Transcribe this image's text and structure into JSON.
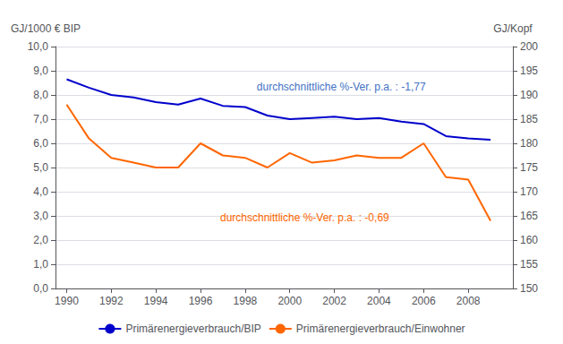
{
  "chart_data": {
    "type": "line",
    "x": [
      1990,
      1991,
      1992,
      1993,
      1994,
      1995,
      1996,
      1997,
      1998,
      1999,
      2000,
      2001,
      2002,
      2003,
      2004,
      2005,
      2006,
      2007,
      2008,
      2009
    ],
    "xlim": [
      1989.5,
      2010.0
    ],
    "xticks": [
      1990,
      1992,
      1994,
      1996,
      1998,
      2000,
      2002,
      2004,
      2006,
      2008
    ],
    "ylabel": "GJ/1000 € BIP",
    "y2label": "GJ/Kopf",
    "ylim": [
      0.0,
      10.0
    ],
    "yticks": [
      {
        "value": 0.0,
        "label": "0,0"
      },
      {
        "value": 1.0,
        "label": "1,0"
      },
      {
        "value": 2.0,
        "label": "2,0"
      },
      {
        "value": 3.0,
        "label": "3,0"
      },
      {
        "value": 4.0,
        "label": "4,0"
      },
      {
        "value": 5.0,
        "label": "5,0"
      },
      {
        "value": 6.0,
        "label": "6,0"
      },
      {
        "value": 7.0,
        "label": "7,0"
      },
      {
        "value": 8.0,
        "label": "8,0"
      },
      {
        "value": 9.0,
        "label": "9,0"
      },
      {
        "value": 10.0,
        "label": "10,0"
      }
    ],
    "y2lim": [
      150,
      200
    ],
    "y2ticks": [
      150,
      155,
      160,
      165,
      170,
      175,
      180,
      185,
      190,
      195,
      200
    ],
    "grid": true,
    "legend": "bottom",
    "series": [
      {
        "name": "Primärenergieverbrauch/BIP",
        "color": "#0000cc",
        "values": [
          8.65,
          8.3,
          8.0,
          7.9,
          7.7,
          7.6,
          7.85,
          7.55,
          7.5,
          7.15,
          7.0,
          7.05,
          7.1,
          7.0,
          7.05,
          6.9,
          6.8,
          6.3,
          6.2,
          6.15
        ]
      },
      {
        "name": "Primärenergieverbrauch/Einwohner",
        "color": "#ff6600",
        "axis": "y2",
        "values": [
          188,
          181,
          177,
          176,
          175,
          175,
          180,
          177.5,
          177,
          175,
          178,
          176,
          176.5,
          177.5,
          177,
          177,
          180,
          173,
          172.5,
          164
        ]
      }
    ],
    "annotations": [
      {
        "text": "durchschnittliche %-Ver. p.a. : -1,77",
        "color": "#4472c4"
      },
      {
        "text": "durchschnittliche %-Ver. p.a. : -0,69",
        "color": "#ff6600"
      }
    ]
  }
}
